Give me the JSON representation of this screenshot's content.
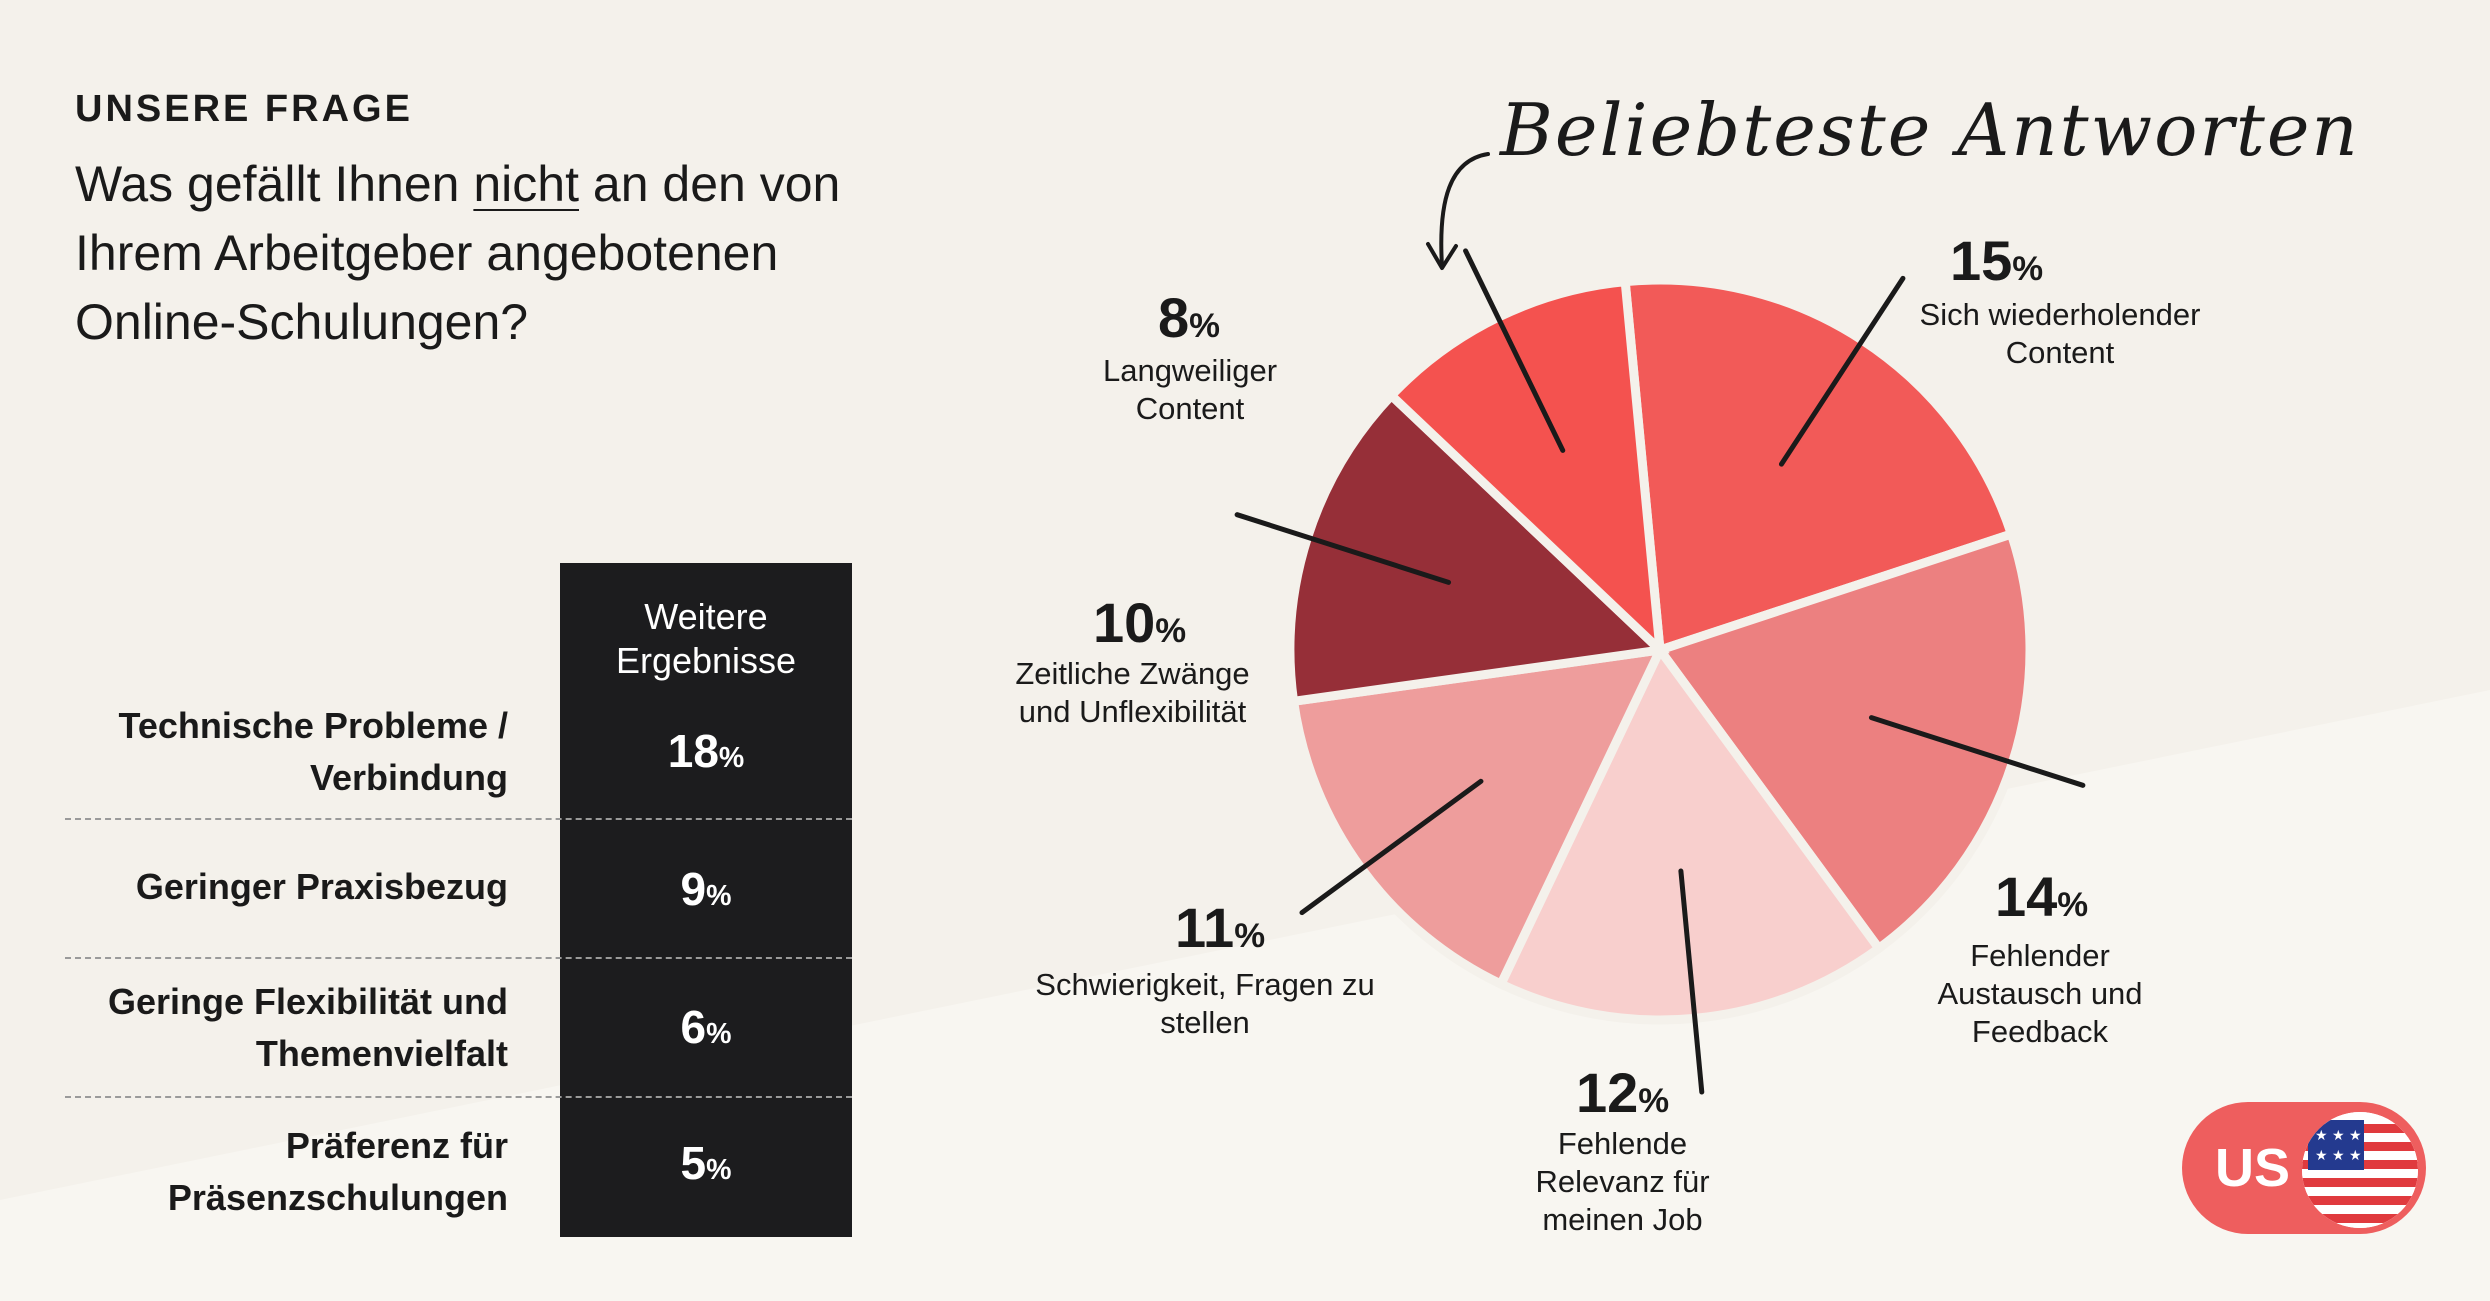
{
  "header": {
    "eyebrow": "UNSERE FRAGE",
    "question_part1": "Was gefällt Ihnen ",
    "question_emphasis": "nicht",
    "question_part2": " an den von Ihrem Arbeitgeber angebotenen Online-Schulungen?"
  },
  "table": {
    "column_header": "Weitere Ergebnisse",
    "rows": [
      {
        "label": "Technische Probleme / Verbindung",
        "value": "18",
        "unit": "%"
      },
      {
        "label": "Geringer Praxisbezug",
        "value": "9",
        "unit": "%"
      },
      {
        "label": "Geringe Flexibilität und Themenvielfalt",
        "value": "6",
        "unit": "%"
      },
      {
        "label": "Präferenz für Präsenzschulungen",
        "value": "5",
        "unit": "%"
      }
    ]
  },
  "chart_data": {
    "type": "pie",
    "title": "Beliebteste Antworten",
    "unit": "%",
    "slices": [
      {
        "label": "Sich wiederholender Content",
        "value": 15,
        "color": "#f25a58"
      },
      {
        "label": "Fehlender Austausch und Feedback",
        "value": 14,
        "color": "#ec8080"
      },
      {
        "label": "Fehlende Relevanz für meinen Job",
        "value": 12,
        "color": "#f8cfcd"
      },
      {
        "label": "Schwierigkeit, Fragen zu stellen",
        "value": 11,
        "color": "#ee9d9c"
      },
      {
        "label": "Zeitliche Zwänge und Unflexibilität",
        "value": 10,
        "color": "#962f38"
      },
      {
        "label": "Langweiliger Content",
        "value": 8,
        "color": "#f4524f"
      }
    ]
  },
  "badge": {
    "label": "US",
    "flag_icon": "us-flag-icon"
  }
}
